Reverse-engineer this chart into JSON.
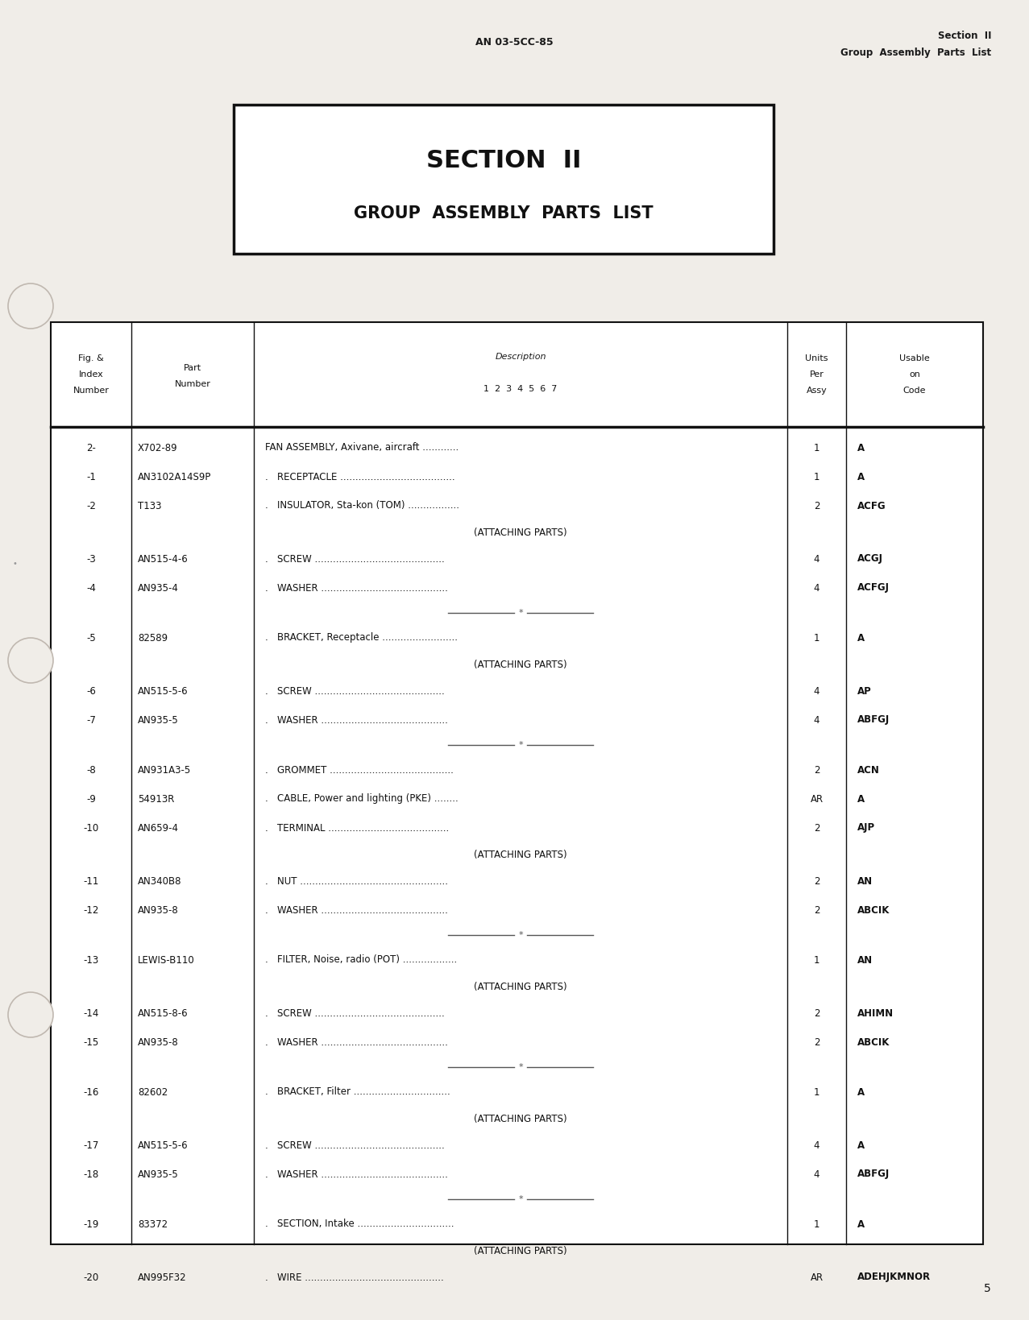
{
  "page_bg": "#f0ede8",
  "header_left": "AN 03-5CC-85",
  "header_right_line1": "Section  II",
  "header_right_line2": "Group  Assembly  Parts  List",
  "section_title_line1": "SECTION  II",
  "section_title_line2": "GROUP  ASSEMBLY  PARTS  LIST",
  "footer_page": "5",
  "rows": [
    {
      "fig": "2-",
      "part": "X702-89",
      "desc": "FAN ASSEMBLY, Axivane, aircraft ............",
      "units": "1",
      "code": "A",
      "type": "data"
    },
    {
      "fig": "-1",
      "part": "AN3102A14S9P",
      "desc": ".   RECEPTACLE ......................................",
      "units": "1",
      "code": "A",
      "type": "data"
    },
    {
      "fig": "-2",
      "part": "T133",
      "desc": ".   INSULATOR, Sta-kon (TOM) .................",
      "units": "2",
      "code": "ACFG",
      "type": "data"
    },
    {
      "fig": "",
      "part": "",
      "desc": "(ATTACHING PARTS)",
      "units": "",
      "code": "",
      "type": "attaching"
    },
    {
      "fig": "-3",
      "part": "AN515-4-6",
      "desc": ".   SCREW ...........................................",
      "units": "4",
      "code": "ACGJ",
      "type": "data"
    },
    {
      "fig": "-4",
      "part": "AN935-4",
      "desc": ".   WASHER ..........................................",
      "units": "4",
      "code": "ACFGJ",
      "type": "data"
    },
    {
      "fig": "",
      "part": "",
      "desc": "",
      "units": "",
      "code": "",
      "type": "separator"
    },
    {
      "fig": "-5",
      "part": "82589",
      "desc": ".   BRACKET, Receptacle .........................",
      "units": "1",
      "code": "A",
      "type": "data"
    },
    {
      "fig": "",
      "part": "",
      "desc": "(ATTACHING PARTS)",
      "units": "",
      "code": "",
      "type": "attaching"
    },
    {
      "fig": "-6",
      "part": "AN515-5-6",
      "desc": ".   SCREW ...........................................",
      "units": "4",
      "code": "AP",
      "type": "data"
    },
    {
      "fig": "-7",
      "part": "AN935-5",
      "desc": ".   WASHER ..........................................",
      "units": "4",
      "code": "ABFGJ",
      "type": "data"
    },
    {
      "fig": "",
      "part": "",
      "desc": "",
      "units": "",
      "code": "",
      "type": "separator"
    },
    {
      "fig": "-8",
      "part": "AN931A3-5",
      "desc": ".   GROMMET .........................................",
      "units": "2",
      "code": "ACN",
      "type": "data"
    },
    {
      "fig": "-9",
      "part": "54913R",
      "desc": ".   CABLE, Power and lighting (PKE) ........",
      "units": "AR",
      "code": "A",
      "type": "data"
    },
    {
      "fig": "-10",
      "part": "AN659-4",
      "desc": ".   TERMINAL ........................................",
      "units": "2",
      "code": "AJP",
      "type": "data"
    },
    {
      "fig": "",
      "part": "",
      "desc": "(ATTACHING PARTS)",
      "units": "",
      "code": "",
      "type": "attaching"
    },
    {
      "fig": "-11",
      "part": "AN340B8",
      "desc": ".   NUT .................................................",
      "units": "2",
      "code": "AN",
      "type": "data"
    },
    {
      "fig": "-12",
      "part": "AN935-8",
      "desc": ".   WASHER ..........................................",
      "units": "2",
      "code": "ABCIK",
      "type": "data"
    },
    {
      "fig": "",
      "part": "",
      "desc": "",
      "units": "",
      "code": "",
      "type": "separator"
    },
    {
      "fig": "-13",
      "part": "LEWIS-B110",
      "desc": ".   FILTER, Noise, radio (POT) ..................",
      "units": "1",
      "code": "AN",
      "type": "data"
    },
    {
      "fig": "",
      "part": "",
      "desc": "(ATTACHING PARTS)",
      "units": "",
      "code": "",
      "type": "attaching"
    },
    {
      "fig": "-14",
      "part": "AN515-8-6",
      "desc": ".   SCREW ...........................................",
      "units": "2",
      "code": "AHIMN",
      "type": "data"
    },
    {
      "fig": "-15",
      "part": "AN935-8",
      "desc": ".   WASHER ..........................................",
      "units": "2",
      "code": "ABCIK",
      "type": "data"
    },
    {
      "fig": "",
      "part": "",
      "desc": "",
      "units": "",
      "code": "",
      "type": "separator"
    },
    {
      "fig": "-16",
      "part": "82602",
      "desc": ".   BRACKET, Filter ................................",
      "units": "1",
      "code": "A",
      "type": "data"
    },
    {
      "fig": "",
      "part": "",
      "desc": "(ATTACHING PARTS)",
      "units": "",
      "code": "",
      "type": "attaching"
    },
    {
      "fig": "-17",
      "part": "AN515-5-6",
      "desc": ".   SCREW ...........................................",
      "units": "4",
      "code": "A",
      "type": "data"
    },
    {
      "fig": "-18",
      "part": "AN935-5",
      "desc": ".   WASHER ..........................................",
      "units": "4",
      "code": "ABFGJ",
      "type": "data"
    },
    {
      "fig": "",
      "part": "",
      "desc": "",
      "units": "",
      "code": "",
      "type": "separator"
    },
    {
      "fig": "-19",
      "part": "83372",
      "desc": ".   SECTION, Intake ................................",
      "units": "1",
      "code": "A",
      "type": "data"
    },
    {
      "fig": "",
      "part": "",
      "desc": "(ATTACHING PARTS)",
      "units": "",
      "code": "",
      "type": "attaching"
    },
    {
      "fig": "-20",
      "part": "AN995F32",
      "desc": ".   WIRE ..............................................",
      "units": "AR",
      "code": "ADEHJKMNOR",
      "type": "data"
    }
  ]
}
